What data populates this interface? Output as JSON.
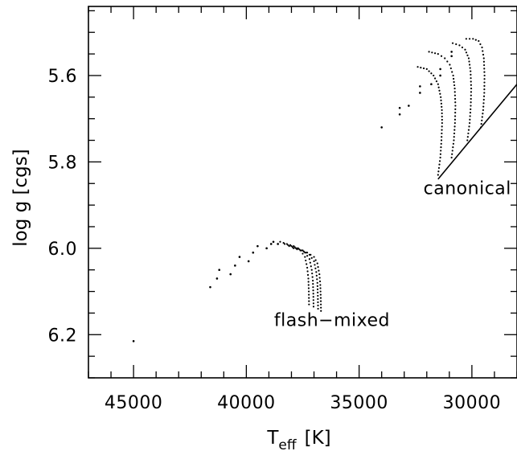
{
  "chart_data": {
    "type": "scatter",
    "xlabel": "T",
    "xlabel_subscript": "eff",
    "xlabel_unit": "[K]",
    "ylabel": "log g [cgs]",
    "xlim": [
      47000,
      28000
    ],
    "ylim": [
      6.3,
      5.44
    ],
    "x_reversed": true,
    "y_reversed": true,
    "x_ticks": [
      45000,
      40000,
      35000,
      30000
    ],
    "x_tick_labels": [
      "45000",
      "40000",
      "35000",
      "30000"
    ],
    "y_ticks": [
      5.6,
      5.8,
      6.0,
      6.2
    ],
    "y_tick_labels": [
      "5.6",
      "5.8",
      "6.0",
      "6.2"
    ],
    "x_minor_step": 1000,
    "y_minor_step": 0.05,
    "grid": false,
    "legend": "none",
    "series": [
      {
        "style": "dotted-track",
        "x": [
          31500,
          31400,
          31350,
          31320,
          31330,
          31380,
          31500,
          31700,
          32000,
          32400
        ],
        "y": [
          5.83,
          5.79,
          5.75,
          5.71,
          5.68,
          5.65,
          5.62,
          5.6,
          5.585,
          5.58
        ]
      },
      {
        "style": "dotted-track",
        "x": [
          30900,
          30800,
          30750,
          30730,
          30760,
          30830,
          30980,
          31200,
          31500,
          31900
        ],
        "y": [
          5.79,
          5.75,
          5.71,
          5.67,
          5.63,
          5.6,
          5.575,
          5.56,
          5.55,
          5.545
        ]
      },
      {
        "style": "dotted-track",
        "x": [
          30200,
          30100,
          30050,
          30030,
          30060,
          30140,
          30300,
          30550,
          30850
        ],
        "y": [
          5.75,
          5.71,
          5.67,
          5.63,
          5.59,
          5.56,
          5.54,
          5.53,
          5.525
        ]
      },
      {
        "style": "dotted-track",
        "x": [
          29600,
          29500,
          29450,
          29440,
          29470,
          29550,
          29700,
          29950,
          30250
        ],
        "y": [
          5.72,
          5.68,
          5.64,
          5.6,
          5.56,
          5.535,
          5.52,
          5.515,
          5.515
        ]
      },
      {
        "style": "dots",
        "x": [
          34000,
          33200,
          33200,
          32800,
          32300,
          32300,
          31800,
          31400,
          31400,
          30900,
          30900
        ],
        "y": [
          5.72,
          5.69,
          5.675,
          5.67,
          5.64,
          5.625,
          5.62,
          5.6,
          5.585,
          5.555,
          5.545
        ]
      },
      {
        "style": "dots",
        "x": [
          45000,
          41600,
          41300,
          41200,
          40700,
          40500,
          40300,
          39900,
          39700,
          39500,
          39100,
          38900,
          38800,
          38600
        ],
        "y": [
          6.215,
          6.09,
          6.07,
          6.05,
          6.06,
          6.04,
          6.02,
          6.03,
          6.01,
          5.995,
          6.0,
          5.99,
          5.985,
          5.99
        ]
      },
      {
        "style": "dotted-track",
        "x": [
          38500,
          38200,
          37900,
          37600,
          37400,
          37300,
          37250,
          37230,
          37220
        ],
        "y": [
          5.985,
          5.99,
          5.995,
          6.005,
          6.02,
          6.045,
          6.07,
          6.1,
          6.13
        ]
      },
      {
        "style": "dotted-track",
        "x": [
          38300,
          38000,
          37700,
          37400,
          37200,
          37100,
          37050,
          37030,
          37020
        ],
        "y": [
          5.99,
          5.995,
          6.0,
          6.01,
          6.025,
          6.05,
          6.075,
          6.105,
          6.135
        ]
      },
      {
        "style": "dotted-track",
        "x": [
          38100,
          37800,
          37500,
          37200,
          37000,
          36900,
          36850,
          36830,
          36820
        ],
        "y": [
          5.995,
          6.0,
          6.005,
          6.015,
          6.03,
          6.055,
          6.08,
          6.11,
          6.14
        ]
      },
      {
        "style": "dotted-track",
        "x": [
          37900,
          37600,
          37300,
          37000,
          36850,
          36760,
          36720,
          36700,
          36690
        ],
        "y": [
          6.0,
          6.005,
          6.01,
          6.02,
          6.035,
          6.06,
          6.085,
          6.115,
          6.145
        ]
      }
    ],
    "lines": [
      {
        "x": [
          31500,
          28000
        ],
        "y": [
          5.84,
          5.62
        ]
      }
    ],
    "annotations": [
      {
        "text": "canonical",
        "x": 30200,
        "y": 5.875
      },
      {
        "text": "flash−mixed",
        "x": 36200,
        "y": 6.18
      }
    ]
  }
}
